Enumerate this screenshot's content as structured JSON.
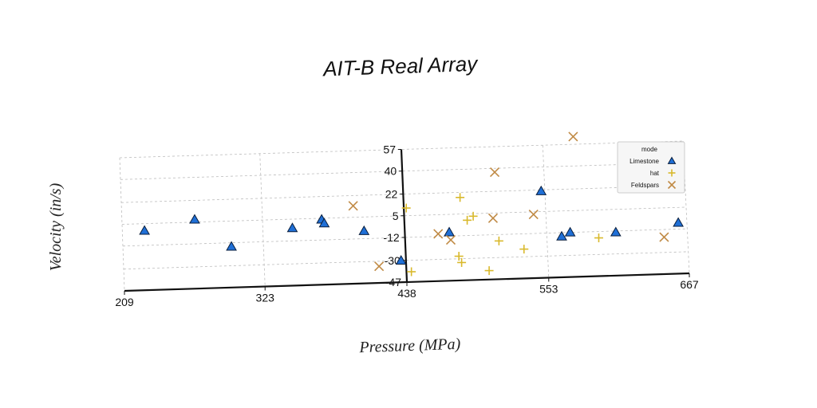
{
  "chart_data": {
    "type": "scatter",
    "title": "AIT-B Real Array",
    "xlabel": "Pressure (MPa)",
    "ylabel": "Velocity (in/s)",
    "xlim": [
      209,
      667
    ],
    "ylim": [
      -47,
      57
    ],
    "x_ticks": [
      "209",
      "323",
      "438",
      "553",
      "667"
    ],
    "y_ticks": [
      "57",
      "40",
      "22",
      "5",
      "-12",
      "-30",
      "-47"
    ],
    "grid": true,
    "legend": {
      "title": "mode",
      "placement": "top-right"
    },
    "series": [
      {
        "name": "Limestone",
        "marker": "triangle",
        "color": "#1f6fd6",
        "points": [
          [
            227,
            -0.5
          ],
          [
            268,
            7
          ],
          [
            297,
            -15
          ],
          [
            347,
            -2
          ],
          [
            371,
            4
          ],
          [
            373,
            1
          ],
          [
            405,
            -6
          ],
          [
            434,
            -30
          ],
          [
            474,
            -9
          ],
          [
            550,
            21
          ],
          [
            565,
            -15
          ],
          [
            572,
            -12
          ],
          [
            609,
            -13
          ],
          [
            660,
            -7
          ]
        ]
      },
      {
        "name": "hat",
        "marker": "plus",
        "color": "#d9b92c",
        "points": [
          [
            440,
            11
          ],
          [
            442,
            -39
          ],
          [
            481,
            -28
          ],
          [
            483,
            -33
          ],
          [
            484,
            18
          ],
          [
            489,
            0
          ],
          [
            494,
            3
          ],
          [
            505,
            -40
          ],
          [
            514,
            -17
          ],
          [
            534,
            -24
          ],
          [
            595,
            -17
          ]
        ]
      },
      {
        "name": "Feldspars",
        "marker": "x",
        "color": "#c08a45",
        "points": [
          [
            397,
            14
          ],
          [
            416,
            -34
          ],
          [
            465,
            -10
          ],
          [
            475,
            -15
          ],
          [
            510,
            1
          ],
          [
            513,
            37
          ],
          [
            543,
            3
          ],
          [
            578,
            63
          ],
          [
            621,
            32
          ],
          [
            630,
            42
          ],
          [
            648,
            -18
          ]
        ]
      }
    ]
  }
}
